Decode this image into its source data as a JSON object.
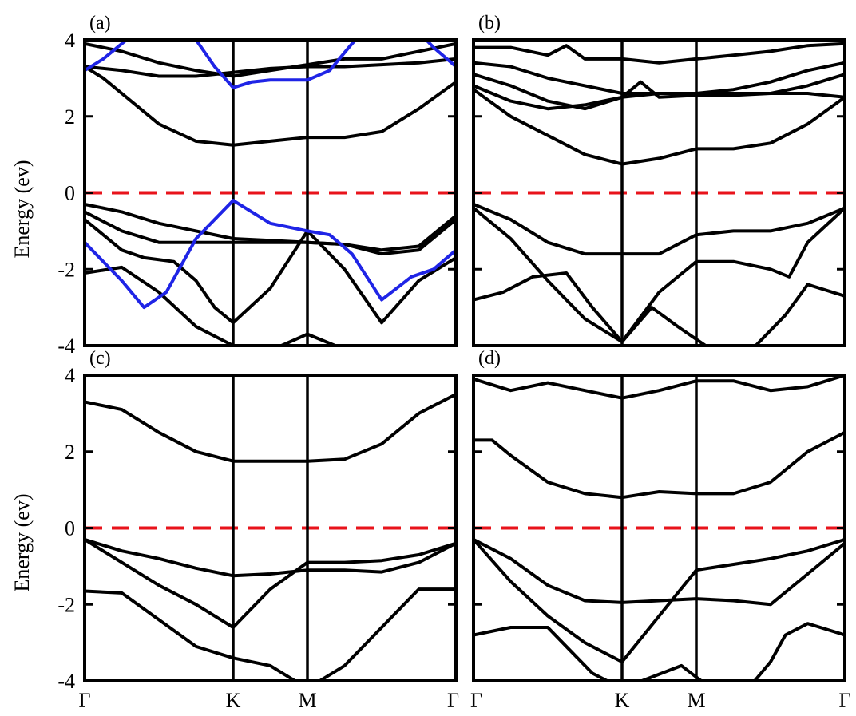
{
  "chart_data": {
    "type": "line",
    "ylabel": "Energy (ev)",
    "ylim": [
      -4,
      4
    ],
    "yticks": [
      -4,
      -2,
      0,
      2,
      4
    ],
    "xlim": [
      0,
      10
    ],
    "kpoints": [
      {
        "label": "Γ",
        "x": 0
      },
      {
        "label": "K",
        "x": 4
      },
      {
        "label": "M",
        "x": 6
      },
      {
        "label": "Γ",
        "x": 10
      }
    ],
    "fermi_level": 0,
    "colors": {
      "band": "#000000",
      "highlight": "#1f24e6",
      "fermi": "#e8131b"
    },
    "panels": [
      {
        "label": "(a)",
        "series": [
          {
            "color": "black",
            "x": [
              0,
              1,
              2,
              3,
              4,
              5,
              6,
              7,
              8,
              9,
              10
            ],
            "y": [
              3.9,
              3.7,
              3.4,
              3.2,
              3.05,
              3.2,
              3.35,
              3.5,
              3.5,
              3.7,
              3.9
            ]
          },
          {
            "color": "black",
            "x": [
              0,
              1,
              2,
              3,
              4,
              5,
              6,
              7,
              8,
              9,
              10
            ],
            "y": [
              3.3,
              3.2,
              3.05,
              3.05,
              3.15,
              3.25,
              3.3,
              3.3,
              3.35,
              3.4,
              3.5
            ]
          },
          {
            "color": "black",
            "x": [
              0,
              0.5,
              1,
              2,
              3,
              4,
              5,
              6,
              7,
              8,
              9,
              10
            ],
            "y": [
              3.3,
              3.0,
              2.6,
              1.8,
              1.35,
              1.25,
              1.35,
              1.45,
              1.45,
              1.6,
              2.2,
              2.9
            ]
          },
          {
            "color": "black",
            "x": [
              0,
              1,
              2,
              3,
              4,
              5,
              6,
              7,
              8,
              9,
              10
            ],
            "y": [
              -0.3,
              -0.5,
              -0.8,
              -1.0,
              -1.2,
              -1.25,
              -1.3,
              -1.35,
              -1.5,
              -1.4,
              -0.6
            ]
          },
          {
            "color": "black",
            "x": [
              0,
              1,
              2,
              3,
              4,
              5,
              6,
              7,
              8,
              9,
              10
            ],
            "y": [
              -0.5,
              -1.0,
              -1.3,
              -1.3,
              -1.3,
              -1.3,
              -1.3,
              -1.35,
              -1.6,
              -1.5,
              -0.7
            ]
          },
          {
            "color": "black",
            "x": [
              0,
              1,
              1.6,
              2.4,
              3,
              3.5,
              4,
              5,
              6,
              7,
              8,
              9,
              10
            ],
            "y": [
              -0.7,
              -1.5,
              -1.7,
              -1.8,
              -2.3,
              -3.0,
              -3.4,
              -2.5,
              -1.0,
              -2.0,
              -3.4,
              -2.3,
              -1.7
            ]
          },
          {
            "color": "black",
            "x": [
              0,
              1,
              2,
              3,
              4,
              4.6,
              5.3,
              6,
              7
            ],
            "y": [
              -2.1,
              -1.95,
              -2.6,
              -3.5,
              -4.0,
              -4.2,
              -4.0,
              -3.7,
              -4.1
            ]
          },
          {
            "color": "blue",
            "x": [
              0,
              1,
              1.6,
              2.2,
              3,
              4,
              5,
              6,
              6.6,
              7.2,
              8,
              8.8,
              9.4,
              10
            ],
            "y": [
              -1.3,
              -2.3,
              -3.0,
              -2.6,
              -1.2,
              -0.2,
              -0.8,
              -1.0,
              -1.1,
              -1.6,
              -2.8,
              -2.2,
              -2.0,
              -1.5
            ]
          },
          {
            "color": "blue",
            "x": [
              0,
              0.5,
              1,
              1.5,
              2,
              2.5,
              3,
              3.5,
              4,
              4.5,
              5,
              6,
              6.6,
              7.2,
              8,
              8.6,
              9,
              9.4,
              10
            ],
            "y": [
              3.2,
              3.5,
              3.9,
              4.3,
              4.8,
              4.4,
              4.0,
              3.3,
              2.75,
              2.9,
              2.95,
              2.95,
              3.2,
              3.9,
              4.7,
              4.6,
              4.2,
              3.8,
              3.3
            ]
          }
        ]
      },
      {
        "label": "(b)",
        "series": [
          {
            "color": "black",
            "x": [
              0,
              1,
              2,
              2.5,
              3,
              3.5,
              4,
              5,
              6,
              7,
              8,
              9,
              10
            ],
            "y": [
              3.8,
              3.8,
              3.6,
              3.85,
              3.5,
              3.5,
              3.5,
              3.4,
              3.5,
              3.6,
              3.7,
              3.85,
              3.9
            ]
          },
          {
            "color": "black",
            "x": [
              0,
              1,
              2,
              3,
              4,
              5,
              6,
              7,
              8,
              9,
              10
            ],
            "y": [
              3.4,
              3.3,
              3.0,
              2.8,
              2.6,
              2.6,
              2.6,
              2.7,
              2.9,
              3.2,
              3.4
            ]
          },
          {
            "color": "black",
            "x": [
              0,
              1,
              2,
              3,
              4,
              4.5,
              5,
              6,
              7,
              8,
              9,
              10
            ],
            "y": [
              3.1,
              2.8,
              2.4,
              2.2,
              2.5,
              2.9,
              2.5,
              2.55,
              2.55,
              2.6,
              2.8,
              3.1
            ]
          },
          {
            "color": "black",
            "x": [
              0,
              1,
              2,
              3,
              4,
              5,
              6,
              7,
              8,
              9,
              10
            ],
            "y": [
              2.8,
              2.4,
              2.2,
              2.3,
              2.5,
              2.6,
              2.6,
              2.6,
              2.6,
              2.6,
              2.5
            ]
          },
          {
            "color": "black",
            "x": [
              0,
              1,
              2,
              3,
              4,
              5,
              6,
              7,
              8,
              9,
              10
            ],
            "y": [
              2.7,
              2.0,
              1.5,
              1.0,
              0.75,
              0.9,
              1.15,
              1.15,
              1.3,
              1.8,
              2.5
            ]
          },
          {
            "color": "black",
            "x": [
              0,
              1,
              2,
              3,
              4,
              5,
              6,
              7,
              8,
              9,
              10
            ],
            "y": [
              -0.3,
              -0.7,
              -1.3,
              -1.6,
              -1.6,
              -1.6,
              -1.1,
              -1.0,
              -1.0,
              -0.8,
              -0.4
            ]
          },
          {
            "color": "black",
            "x": [
              0,
              1,
              2,
              3,
              4,
              5,
              6,
              7,
              8,
              8.5,
              9,
              10
            ],
            "y": [
              -0.4,
              -1.2,
              -2.3,
              -3.3,
              -3.9,
              -2.6,
              -1.8,
              -1.8,
              -2.0,
              -2.2,
              -1.3,
              -0.4
            ]
          },
          {
            "color": "black",
            "x": [
              0,
              0.8,
              1.6,
              2.5,
              3.2,
              4,
              4.8,
              5.5,
              6.4
            ],
            "y": [
              -2.8,
              -2.6,
              -2.2,
              -2.1,
              -3.0,
              -3.9,
              -3.0,
              -3.5,
              -4.1
            ]
          },
          {
            "color": "black",
            "x": [
              7.5,
              8.4,
              9,
              10
            ],
            "y": [
              -4.1,
              -3.2,
              -2.4,
              -2.7
            ]
          }
        ]
      },
      {
        "label": "(c)",
        "series": [
          {
            "color": "black",
            "x": [
              0,
              1,
              2,
              3,
              4,
              5,
              6,
              7,
              8,
              9,
              10
            ],
            "y": [
              3.3,
              3.1,
              2.5,
              2.0,
              1.75,
              1.75,
              1.75,
              1.8,
              2.2,
              3.0,
              3.5
            ]
          },
          {
            "color": "black",
            "x": [
              0,
              1,
              2,
              3,
              4,
              5,
              6,
              7,
              8,
              9,
              10
            ],
            "y": [
              -0.3,
              -0.6,
              -0.8,
              -1.05,
              -1.25,
              -1.2,
              -1.1,
              -1.1,
              -1.15,
              -0.9,
              -0.4
            ]
          },
          {
            "color": "black",
            "x": [
              0,
              1,
              2,
              3,
              4,
              5,
              6,
              7,
              8,
              9,
              10
            ],
            "y": [
              -0.3,
              -0.9,
              -1.5,
              -2.0,
              -2.6,
              -1.6,
              -0.9,
              -0.9,
              -0.85,
              -0.7,
              -0.4
            ]
          },
          {
            "color": "black",
            "x": [
              0,
              1,
              2,
              3,
              4,
              5,
              6,
              7,
              8,
              9,
              10
            ],
            "y": [
              -1.65,
              -1.7,
              -2.4,
              -3.1,
              -3.4,
              -3.6,
              -4.2,
              -3.6,
              -2.6,
              -1.6,
              -1.6
            ]
          }
        ]
      },
      {
        "label": "(d)",
        "series": [
          {
            "color": "black",
            "x": [
              0,
              1,
              2,
              3,
              4,
              5,
              6,
              7,
              8,
              9,
              10
            ],
            "y": [
              3.9,
              3.6,
              3.8,
              3.6,
              3.4,
              3.6,
              3.85,
              3.85,
              3.6,
              3.7,
              4.0
            ]
          },
          {
            "color": "black",
            "x": [
              0,
              0.5,
              1,
              2,
              3,
              4,
              5,
              6,
              7,
              8,
              9,
              10
            ],
            "y": [
              2.3,
              2.3,
              1.9,
              1.2,
              0.9,
              0.8,
              0.95,
              0.9,
              0.9,
              1.2,
              2.0,
              2.5
            ]
          },
          {
            "color": "black",
            "x": [
              0,
              1,
              2,
              3,
              4,
              5,
              6,
              7,
              8,
              9,
              10
            ],
            "y": [
              -0.3,
              -0.8,
              -1.5,
              -1.9,
              -1.95,
              -1.9,
              -1.85,
              -1.9,
              -2.0,
              -1.2,
              -0.4
            ]
          },
          {
            "color": "black",
            "x": [
              0,
              1,
              2,
              3,
              4,
              5,
              6,
              7,
              8,
              9,
              10
            ],
            "y": [
              -0.3,
              -1.4,
              -2.3,
              -3.0,
              -3.5,
              -2.3,
              -1.1,
              -0.95,
              -0.8,
              -0.6,
              -0.3
            ]
          },
          {
            "color": "black",
            "x": [
              0,
              1,
              2,
              2.6,
              3.2,
              4,
              4.8,
              5.6,
              6.4
            ],
            "y": [
              -2.8,
              -2.6,
              -2.6,
              -3.2,
              -3.8,
              -4.2,
              -3.9,
              -3.6,
              -4.2
            ]
          },
          {
            "color": "black",
            "x": [
              7.4,
              8,
              8.4,
              9,
              10
            ],
            "y": [
              -4.2,
              -3.5,
              -2.8,
              -2.5,
              -2.8
            ]
          }
        ]
      }
    ]
  }
}
